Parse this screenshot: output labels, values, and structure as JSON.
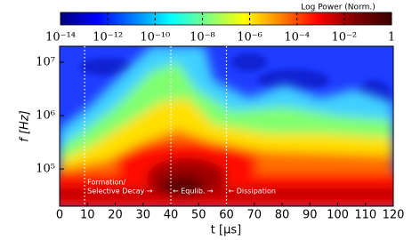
{
  "chart_data": {
    "type": "spectrogram",
    "xlabel": "t [μs]",
    "ylabel": "f [Hz]",
    "xlim": [
      0,
      120
    ],
    "xticks": [
      0,
      10,
      20,
      30,
      40,
      50,
      60,
      70,
      80,
      90,
      100,
      110,
      120
    ],
    "ylim": [
      20000,
      20000000
    ],
    "log_y": true,
    "yticks": [
      {
        "value": 100000,
        "label": "10⁵"
      },
      {
        "value": 1000000,
        "label": "10⁶"
      },
      {
        "value": 10000000,
        "label": "10⁷"
      }
    ],
    "vlines": [
      9,
      40,
      60
    ],
    "annotations": [
      "Formation/",
      "Selective Decay →",
      "← Equlib. →",
      "← Dissipation"
    ],
    "colorbar": {
      "label": "Log Power (Norm.)",
      "lim": [
        1e-14,
        1
      ],
      "log": true,
      "ticks": [
        {
          "value": 1e-14,
          "label": "10⁻¹⁴"
        },
        {
          "value": 1e-12,
          "label": "10⁻¹²"
        },
        {
          "value": 1e-10,
          "label": "10⁻¹⁰"
        },
        {
          "value": 1e-08,
          "label": "10⁻⁸"
        },
        {
          "value": 1e-06,
          "label": "10⁻⁶"
        },
        {
          "value": 0.0001,
          "label": "10⁻⁴"
        },
        {
          "value": 0.01,
          "label": "10⁻²"
        },
        1
      ],
      "colors": [
        "#00007f",
        "#0000ff",
        "#0080ff",
        "#00ffff",
        "#80ff80",
        "#ffff00",
        "#ff8000",
        "#ff0000",
        "#7f0000",
        "#3a0000"
      ]
    }
  }
}
